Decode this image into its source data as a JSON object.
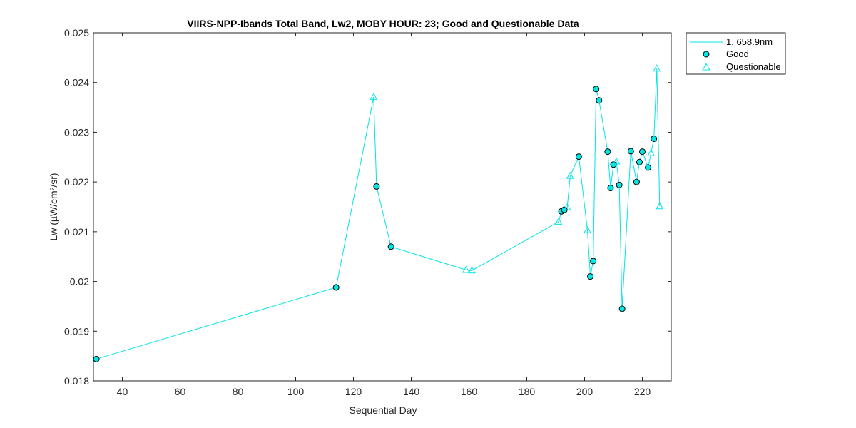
{
  "chart_data": {
    "type": "line",
    "title": "VIIRS-NPP-Ibands Total Band,  Lw2, MOBY HOUR: 23;  Good and Questionable Data",
    "xlabel": "Sequential Day",
    "ylabel": "Lw (µW/cm²/sr)",
    "xlim": [
      30,
      230
    ],
    "ylim": [
      0.018,
      0.025
    ],
    "xticks": [
      40,
      60,
      80,
      100,
      120,
      140,
      160,
      180,
      200,
      220
    ],
    "xtick_labels": [
      "40",
      "60",
      "80",
      "100",
      "120",
      "140",
      "160",
      "180",
      "200",
      "220"
    ],
    "yticks": [
      0.018,
      0.019,
      0.02,
      0.021,
      0.022,
      0.023,
      0.024,
      0.025
    ],
    "ytick_labels": [
      "0.018",
      "0.019",
      "0.02",
      "0.021",
      "0.022",
      "0.023",
      "0.024",
      "0.025"
    ],
    "grid": false,
    "legend_position": "outside-top-right",
    "color": "#00e5e5",
    "series": [
      {
        "name": "1, 658.9nm",
        "x": [
          31,
          114,
          127,
          128,
          133,
          159,
          161,
          191,
          192,
          193,
          194,
          195,
          198,
          201,
          202,
          203,
          204,
          205,
          208,
          209,
          210,
          211,
          212,
          213,
          216,
          218,
          219,
          220,
          222,
          223,
          224,
          225,
          226
        ],
        "y": [
          0.01844,
          0.01988,
          0.02371,
          0.02191,
          0.0207,
          0.02023,
          0.02022,
          0.0212,
          0.02141,
          0.02144,
          0.02149,
          0.02212,
          0.02251,
          0.02103,
          0.0201,
          0.02041,
          0.02387,
          0.02364,
          0.02261,
          0.02188,
          0.02235,
          0.02241,
          0.02194,
          0.01945,
          0.02262,
          0.022,
          0.0224,
          0.02261,
          0.02229,
          0.02258,
          0.02287,
          0.02428,
          0.02151
        ]
      }
    ],
    "markers": [
      {
        "name": "Good",
        "shape": "circle",
        "x": [
          31,
          114,
          128,
          133,
          192,
          193,
          198,
          202,
          203,
          204,
          205,
          208,
          209,
          210,
          212,
          213,
          216,
          218,
          219,
          220,
          222,
          224
        ],
        "y": [
          0.01844,
          0.01988,
          0.02191,
          0.0207,
          0.02141,
          0.02144,
          0.02251,
          0.0201,
          0.02041,
          0.02387,
          0.02364,
          0.02261,
          0.02188,
          0.02235,
          0.02194,
          0.01945,
          0.02262,
          0.022,
          0.0224,
          0.02261,
          0.02229,
          0.02287
        ]
      },
      {
        "name": "Questionable",
        "shape": "triangle",
        "x": [
          127,
          159,
          161,
          191,
          194,
          195,
          201,
          211,
          223,
          225,
          226
        ],
        "y": [
          0.02371,
          0.02023,
          0.02022,
          0.0212,
          0.02149,
          0.02212,
          0.02103,
          0.02241,
          0.02258,
          0.02428,
          0.02151
        ]
      }
    ]
  }
}
